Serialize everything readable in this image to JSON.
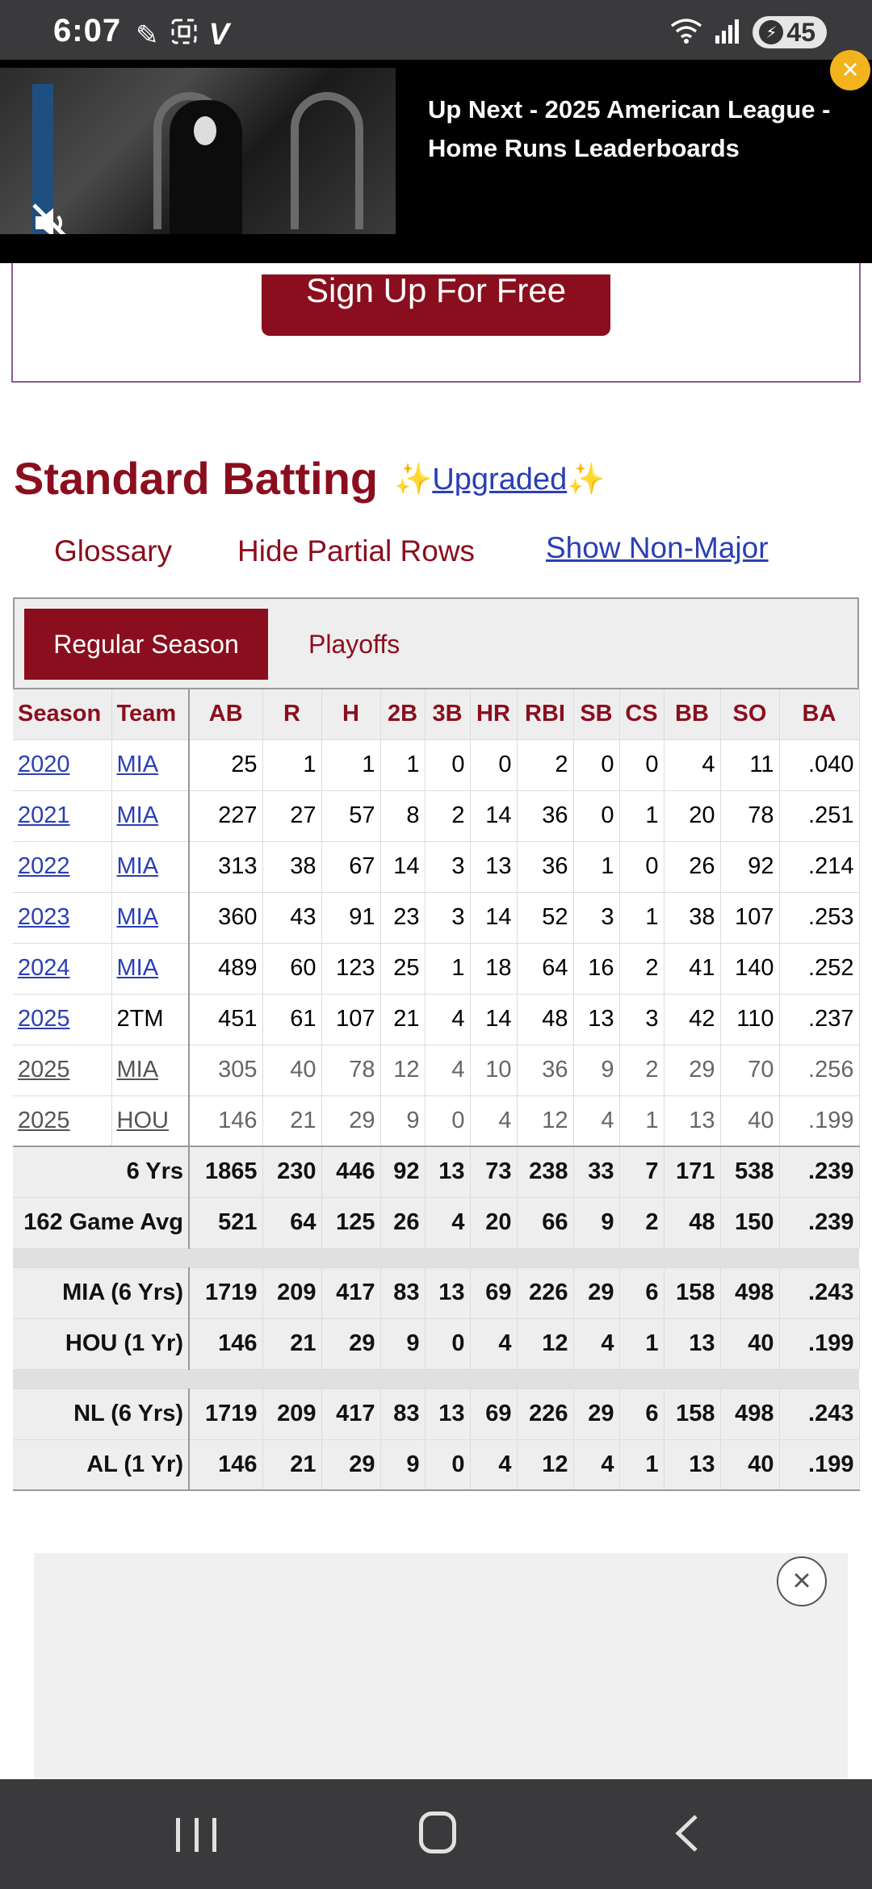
{
  "status_bar": {
    "time": "6:07",
    "left_icons": [
      "pen-icon",
      "screenshot-icon",
      "v-icon"
    ],
    "battery": "45",
    "right_icons": [
      "wifi-icon",
      "signal-icon",
      "battery-charging-icon"
    ]
  },
  "video_ad": {
    "title": "Up Next - 2025 American League - Home Runs Leaderboards",
    "mute_icon": "mute-icon",
    "close_icon": "close-icon",
    "close_color": "#f2b31d"
  },
  "signup": {
    "button_label": "Sign Up For Free"
  },
  "section": {
    "title": "Standard Batting",
    "upgraded_prefix": "✨",
    "upgraded_link": "Upgraded",
    "upgraded_suffix": "✨"
  },
  "links": {
    "glossary": "Glossary",
    "hide_partial": "Hide Partial Rows",
    "show_non_major": "Show Non-Major"
  },
  "tabs": [
    {
      "label": "Regular Season",
      "active": true
    },
    {
      "label": "Playoffs",
      "active": false
    }
  ],
  "colors": {
    "brand": "#8b0e1e",
    "link": "#2a3fb5",
    "header_bg": "#eeeeee"
  },
  "table": {
    "columns": [
      "Season",
      "Team",
      "AB",
      "R",
      "H",
      "2B",
      "3B",
      "HR",
      "RBI",
      "SB",
      "CS",
      "BB",
      "SO",
      "BA"
    ],
    "rows": [
      {
        "season": "2020",
        "team": "MIA",
        "team_link": true,
        "partial": false,
        "values": [
          "25",
          "1",
          "1",
          "1",
          "0",
          "0",
          "2",
          "0",
          "0",
          "4",
          "11",
          ".040"
        ]
      },
      {
        "season": "2021",
        "team": "MIA",
        "team_link": true,
        "partial": false,
        "values": [
          "227",
          "27",
          "57",
          "8",
          "2",
          "14",
          "36",
          "0",
          "1",
          "20",
          "78",
          ".251"
        ]
      },
      {
        "season": "2022",
        "team": "MIA",
        "team_link": true,
        "partial": false,
        "values": [
          "313",
          "38",
          "67",
          "14",
          "3",
          "13",
          "36",
          "1",
          "0",
          "26",
          "92",
          ".214"
        ]
      },
      {
        "season": "2023",
        "team": "MIA",
        "team_link": true,
        "partial": false,
        "values": [
          "360",
          "43",
          "91",
          "23",
          "3",
          "14",
          "52",
          "3",
          "1",
          "38",
          "107",
          ".253"
        ]
      },
      {
        "season": "2024",
        "team": "MIA",
        "team_link": true,
        "partial": false,
        "values": [
          "489",
          "60",
          "123",
          "25",
          "1",
          "18",
          "64",
          "16",
          "2",
          "41",
          "140",
          ".252"
        ]
      },
      {
        "season": "2025",
        "team": "2TM",
        "team_link": false,
        "partial": false,
        "values": [
          "451",
          "61",
          "107",
          "21",
          "4",
          "14",
          "48",
          "13",
          "3",
          "42",
          "110",
          ".237"
        ]
      },
      {
        "season": "2025",
        "team": "MIA",
        "team_link": true,
        "partial": true,
        "values": [
          "305",
          "40",
          "78",
          "12",
          "4",
          "10",
          "36",
          "9",
          "2",
          "29",
          "70",
          ".256"
        ]
      },
      {
        "season": "2025",
        "team": "HOU",
        "team_link": true,
        "partial": true,
        "values": [
          "146",
          "21",
          "29",
          "9",
          "0",
          "4",
          "12",
          "4",
          "1",
          "13",
          "40",
          ".199"
        ]
      }
    ],
    "summary": [
      {
        "label": "6 Yrs",
        "values": [
          "1865",
          "230",
          "446",
          "92",
          "13",
          "73",
          "238",
          "33",
          "7",
          "171",
          "538",
          ".239"
        ]
      },
      {
        "label": "162 Game Avg",
        "values": [
          "521",
          "64",
          "125",
          "26",
          "4",
          "20",
          "66",
          "9",
          "2",
          "48",
          "150",
          ".239"
        ]
      },
      {
        "spacer": true
      },
      {
        "label": "MIA (6 Yrs)",
        "values": [
          "1719",
          "209",
          "417",
          "83",
          "13",
          "69",
          "226",
          "29",
          "6",
          "158",
          "498",
          ".243"
        ]
      },
      {
        "label": "HOU (1 Yr)",
        "values": [
          "146",
          "21",
          "29",
          "9",
          "0",
          "4",
          "12",
          "4",
          "1",
          "13",
          "40",
          ".199"
        ]
      },
      {
        "spacer": true
      },
      {
        "label": "NL (6 Yrs)",
        "values": [
          "1719",
          "209",
          "417",
          "83",
          "13",
          "69",
          "226",
          "29",
          "6",
          "158",
          "498",
          ".243"
        ]
      },
      {
        "label": "AL (1 Yr)",
        "values": [
          "146",
          "21",
          "29",
          "9",
          "0",
          "4",
          "12",
          "4",
          "1",
          "13",
          "40",
          ".199"
        ]
      }
    ]
  },
  "bottom_ad": {
    "close_icon": "close-circle-icon"
  },
  "nav_bar": {
    "icons": [
      "recent-apps-icon",
      "home-icon",
      "back-icon"
    ]
  }
}
